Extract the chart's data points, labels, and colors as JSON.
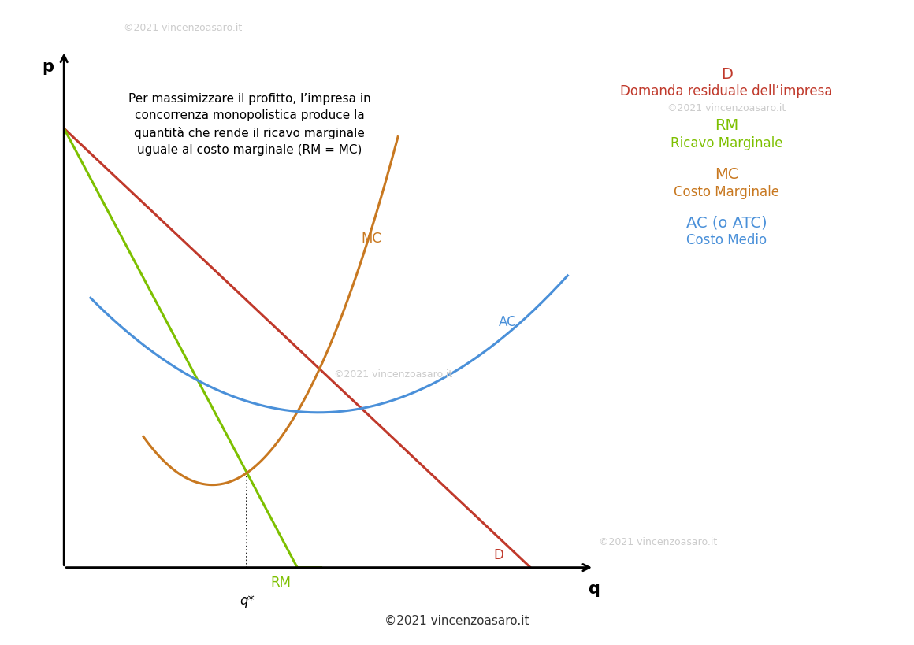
{
  "background_color": "#ffffff",
  "xlabel": "q",
  "ylabel": "p",
  "curve_colors": {
    "D": "#c0392b",
    "RM": "#7dc000",
    "MC": "#c87820",
    "AC": "#4a90d9"
  },
  "annotation_text": "Per massimizzare il profitto, l’impresa in\nconcorrenza monopolistica produce la\nquantità che rende il ricavo marginale\nuguale al costo marginale (RM = MC)",
  "watermark_light": "©2021 vincenzoasaro.it",
  "watermark_dark": "©2021 vincenzoasaro.it",
  "legend": {
    "D_line1": "D",
    "D_line2": "Domanda residuale dell’impresa",
    "RM_line1": "RM",
    "RM_line2": "Ricavo Marginale",
    "MC_line1": "MC",
    "MC_line2": "Costo Marginale",
    "AC_line1": "AC (o ATC)",
    "AC_line2": "Costo Medio"
  }
}
